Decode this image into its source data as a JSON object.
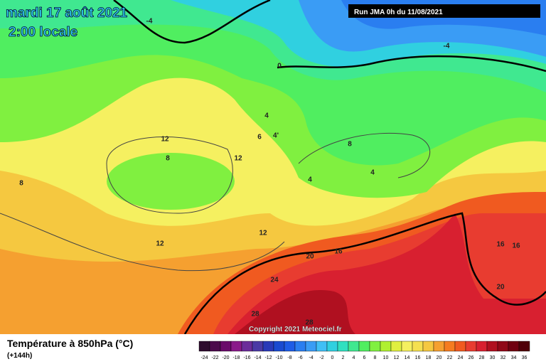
{
  "header": {
    "date": "mardi 17 août 2021",
    "time": "2:00 locale",
    "run": "Run JMA 0h du 11/08/2021"
  },
  "map": {
    "contour_labels": [
      "-4",
      "-4",
      "0",
      "4",
      "6",
      "4'",
      "8",
      "12",
      "8",
      "12",
      "4",
      "4",
      "8",
      "12",
      "12",
      "16",
      "20",
      "16",
      "16",
      "24",
      "20",
      "28",
      "28"
    ]
  },
  "credit": "Copyright 2021 Meteociel.fr",
  "footer": {
    "title": "Température à 850hPa (°C)",
    "lead": "(+144h)"
  },
  "legend": {
    "values": [
      -24,
      -22,
      -20,
      -18,
      -16,
      -14,
      -12,
      -10,
      -8,
      -6,
      -4,
      -2,
      0,
      2,
      4,
      6,
      8,
      10,
      12,
      14,
      16,
      18,
      20,
      22,
      24,
      26,
      28,
      30,
      32,
      34,
      36
    ],
    "colors": [
      "#2d0b2d",
      "#4b0b4b",
      "#6a0a6a",
      "#8a1a8a",
      "#6b2d9a",
      "#4b3aa5",
      "#2a3ab8",
      "#1a4ad0",
      "#1e5ce6",
      "#2a7ef0",
      "#3a9cf5",
      "#40bff5",
      "#30d0e0",
      "#30e0c0",
      "#40e890",
      "#50ee60",
      "#80f040",
      "#b0f030",
      "#e0f040",
      "#f5f060",
      "#f5e050",
      "#f5c840",
      "#f5a030",
      "#f57c20",
      "#f05a20",
      "#e83c30",
      "#d82030",
      "#b01020",
      "#900818",
      "#700010",
      "#500008"
    ]
  }
}
